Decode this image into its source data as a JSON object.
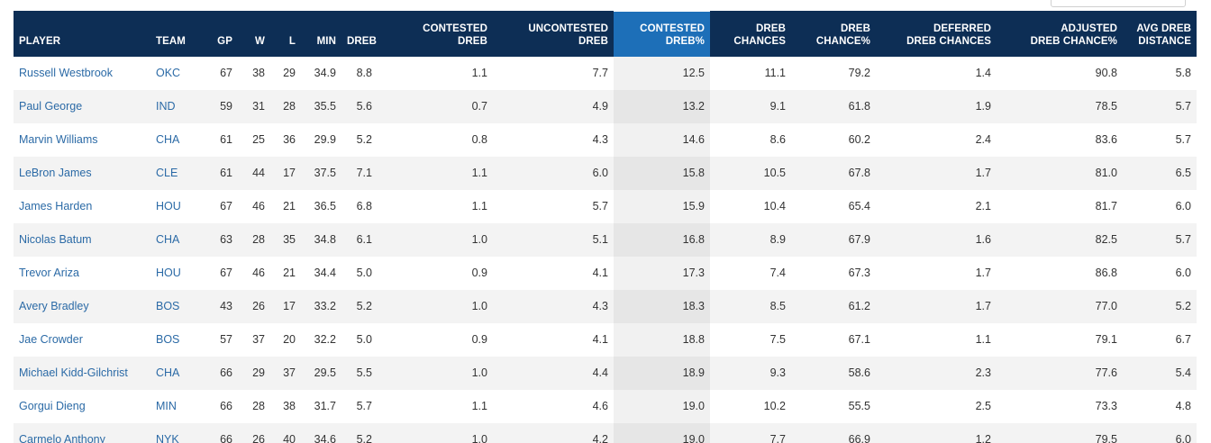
{
  "columns": [
    {
      "key": "player",
      "line1": "",
      "line2": "PLAYER"
    },
    {
      "key": "team",
      "line1": "",
      "line2": "TEAM"
    },
    {
      "key": "gp",
      "line1": "",
      "line2": "GP"
    },
    {
      "key": "w",
      "line1": "",
      "line2": "W"
    },
    {
      "key": "l",
      "line1": "",
      "line2": "L"
    },
    {
      "key": "min",
      "line1": "",
      "line2": "MIN"
    },
    {
      "key": "dreb",
      "line1": "",
      "line2": "DREB"
    },
    {
      "key": "contested_dreb",
      "line1": "CONTESTED",
      "line2": "DREB"
    },
    {
      "key": "uncontested_dreb",
      "line1": "UNCONTESTED",
      "line2": "DREB"
    },
    {
      "key": "contested_dreb_pct",
      "line1": "CONTESTED",
      "line2": "DREB%"
    },
    {
      "key": "dreb_chances",
      "line1": "DREB",
      "line2": "CHANCES"
    },
    {
      "key": "dreb_chance_pct",
      "line1": "DREB",
      "line2": "CHANCE%"
    },
    {
      "key": "deferred_dreb_chances",
      "line1": "DEFERRED",
      "line2": "DREB CHANCES"
    },
    {
      "key": "adjusted_dreb_chance_pct",
      "line1": "ADJUSTED",
      "line2": "DREB CHANCE%"
    },
    {
      "key": "avg_dreb_distance",
      "line1": "AVG DREB",
      "line2": "DISTANCE"
    }
  ],
  "sorted_column": "contested_dreb_pct",
  "rows": [
    {
      "player": "Russell Westbrook",
      "team": "OKC",
      "gp": "67",
      "w": "38",
      "l": "29",
      "min": "34.9",
      "dreb": "8.8",
      "contested_dreb": "1.1",
      "uncontested_dreb": "7.7",
      "contested_dreb_pct": "12.5",
      "dreb_chances": "11.1",
      "dreb_chance_pct": "79.2",
      "deferred_dreb_chances": "1.4",
      "adjusted_dreb_chance_pct": "90.8",
      "avg_dreb_distance": "5.8"
    },
    {
      "player": "Paul George",
      "team": "IND",
      "gp": "59",
      "w": "31",
      "l": "28",
      "min": "35.5",
      "dreb": "5.6",
      "contested_dreb": "0.7",
      "uncontested_dreb": "4.9",
      "contested_dreb_pct": "13.2",
      "dreb_chances": "9.1",
      "dreb_chance_pct": "61.8",
      "deferred_dreb_chances": "1.9",
      "adjusted_dreb_chance_pct": "78.5",
      "avg_dreb_distance": "5.7"
    },
    {
      "player": "Marvin Williams",
      "team": "CHA",
      "gp": "61",
      "w": "25",
      "l": "36",
      "min": "29.9",
      "dreb": "5.2",
      "contested_dreb": "0.8",
      "uncontested_dreb": "4.3",
      "contested_dreb_pct": "14.6",
      "dreb_chances": "8.6",
      "dreb_chance_pct": "60.2",
      "deferred_dreb_chances": "2.4",
      "adjusted_dreb_chance_pct": "83.6",
      "avg_dreb_distance": "5.7"
    },
    {
      "player": "LeBron James",
      "team": "CLE",
      "gp": "61",
      "w": "44",
      "l": "17",
      "min": "37.5",
      "dreb": "7.1",
      "contested_dreb": "1.1",
      "uncontested_dreb": "6.0",
      "contested_dreb_pct": "15.8",
      "dreb_chances": "10.5",
      "dreb_chance_pct": "67.8",
      "deferred_dreb_chances": "1.7",
      "adjusted_dreb_chance_pct": "81.0",
      "avg_dreb_distance": "6.5"
    },
    {
      "player": "James Harden",
      "team": "HOU",
      "gp": "67",
      "w": "46",
      "l": "21",
      "min": "36.5",
      "dreb": "6.8",
      "contested_dreb": "1.1",
      "uncontested_dreb": "5.7",
      "contested_dreb_pct": "15.9",
      "dreb_chances": "10.4",
      "dreb_chance_pct": "65.4",
      "deferred_dreb_chances": "2.1",
      "adjusted_dreb_chance_pct": "81.7",
      "avg_dreb_distance": "6.0"
    },
    {
      "player": "Nicolas Batum",
      "team": "CHA",
      "gp": "63",
      "w": "28",
      "l": "35",
      "min": "34.8",
      "dreb": "6.1",
      "contested_dreb": "1.0",
      "uncontested_dreb": "5.1",
      "contested_dreb_pct": "16.8",
      "dreb_chances": "8.9",
      "dreb_chance_pct": "67.9",
      "deferred_dreb_chances": "1.6",
      "adjusted_dreb_chance_pct": "82.5",
      "avg_dreb_distance": "5.7"
    },
    {
      "player": "Trevor Ariza",
      "team": "HOU",
      "gp": "67",
      "w": "46",
      "l": "21",
      "min": "34.4",
      "dreb": "5.0",
      "contested_dreb": "0.9",
      "uncontested_dreb": "4.1",
      "contested_dreb_pct": "17.3",
      "dreb_chances": "7.4",
      "dreb_chance_pct": "67.3",
      "deferred_dreb_chances": "1.7",
      "adjusted_dreb_chance_pct": "86.8",
      "avg_dreb_distance": "6.0"
    },
    {
      "player": "Avery Bradley",
      "team": "BOS",
      "gp": "43",
      "w": "26",
      "l": "17",
      "min": "33.2",
      "dreb": "5.2",
      "contested_dreb": "1.0",
      "uncontested_dreb": "4.3",
      "contested_dreb_pct": "18.3",
      "dreb_chances": "8.5",
      "dreb_chance_pct": "61.2",
      "deferred_dreb_chances": "1.7",
      "adjusted_dreb_chance_pct": "77.0",
      "avg_dreb_distance": "5.2"
    },
    {
      "player": "Jae Crowder",
      "team": "BOS",
      "gp": "57",
      "w": "37",
      "l": "20",
      "min": "32.2",
      "dreb": "5.0",
      "contested_dreb": "0.9",
      "uncontested_dreb": "4.1",
      "contested_dreb_pct": "18.8",
      "dreb_chances": "7.5",
      "dreb_chance_pct": "67.1",
      "deferred_dreb_chances": "1.1",
      "adjusted_dreb_chance_pct": "79.1",
      "avg_dreb_distance": "6.7"
    },
    {
      "player": "Michael Kidd-Gilchrist",
      "team": "CHA",
      "gp": "66",
      "w": "29",
      "l": "37",
      "min": "29.5",
      "dreb": "5.5",
      "contested_dreb": "1.0",
      "uncontested_dreb": "4.4",
      "contested_dreb_pct": "18.9",
      "dreb_chances": "9.3",
      "dreb_chance_pct": "58.6",
      "deferred_dreb_chances": "2.3",
      "adjusted_dreb_chance_pct": "77.6",
      "avg_dreb_distance": "5.4"
    },
    {
      "player": "Gorgui Dieng",
      "team": "MIN",
      "gp": "66",
      "w": "28",
      "l": "38",
      "min": "31.7",
      "dreb": "5.7",
      "contested_dreb": "1.1",
      "uncontested_dreb": "4.6",
      "contested_dreb_pct": "19.0",
      "dreb_chances": "10.2",
      "dreb_chance_pct": "55.5",
      "deferred_dreb_chances": "2.5",
      "adjusted_dreb_chance_pct": "73.3",
      "avg_dreb_distance": "4.8"
    },
    {
      "player": "Carmelo Anthony",
      "team": "NYK",
      "gp": "66",
      "w": "26",
      "l": "40",
      "min": "34.6",
      "dreb": "5.2",
      "contested_dreb": "1.0",
      "uncontested_dreb": "4.2",
      "contested_dreb_pct": "19.0",
      "dreb_chances": "7.7",
      "dreb_chance_pct": "66.9",
      "deferred_dreb_chances": "1.2",
      "adjusted_dreb_chance_pct": "79.5",
      "avg_dreb_distance": "6.0"
    }
  ]
}
